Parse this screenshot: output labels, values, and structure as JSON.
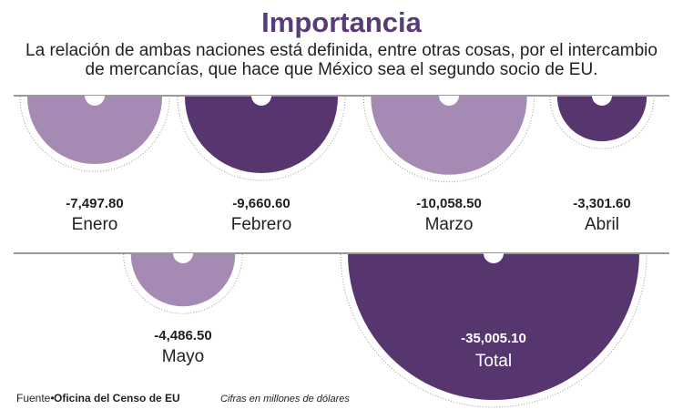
{
  "chart_data": {
    "type": "semicircle",
    "title": "Importancia",
    "subtitle": [
      "La relación de ambas naciones está definida, entre otras cosas, por el intercambio",
      "de mercancías, que hace que México sea el segundo socio de EU."
    ],
    "categories": [
      "Enero",
      "Febrero",
      "Marzo",
      "Abril",
      "Mayo",
      "Total"
    ],
    "values": [
      -7497.8,
      -9660.6,
      -10058.5,
      -3301.6,
      -4486.5,
      -35005.1
    ],
    "value_labels": [
      "-7,497.80",
      "-9,660.60",
      "-10,058.50",
      "-3,301.60",
      "-4,486.50",
      "-35,005.10"
    ],
    "colors": [
      "#a58bb4",
      "#57356f",
      "#a58bb4",
      "#57356f",
      "#a58bb4",
      "#57356f"
    ],
    "source_label": "Fuente•",
    "source": "Oficina del Censo de EU",
    "note": "Cifras en millones de dólares"
  }
}
